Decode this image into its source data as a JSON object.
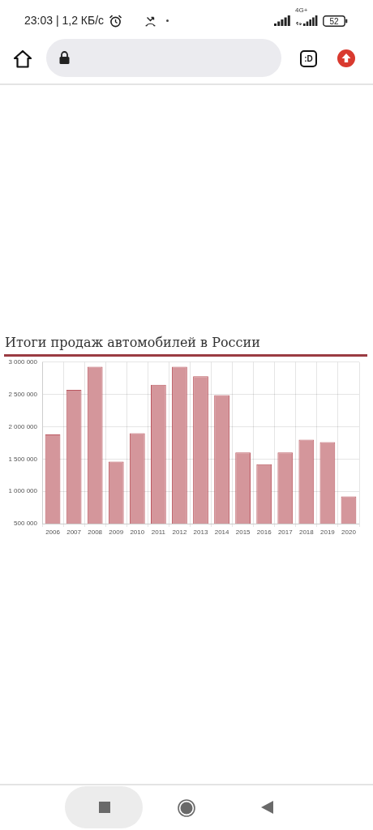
{
  "chart_data": {
    "type": "bar",
    "title": "Итоги продаж автомобилей в России",
    "categories": [
      "2006",
      "2007",
      "2008",
      "2009",
      "2010",
      "2011",
      "2012",
      "2013",
      "2014",
      "2015",
      "2016",
      "2017",
      "2018",
      "2019",
      "2020"
    ],
    "values": [
      1880000,
      2570000,
      2930000,
      1460000,
      1900000,
      2650000,
      2930000,
      2780000,
      2490000,
      1600000,
      1420000,
      1600000,
      1800000,
      1760000,
      920000
    ],
    "color": "#d4969b",
    "ylim": [
      500000,
      3000000
    ],
    "yticks": [
      {
        "value": 500000,
        "label": "500 000"
      },
      {
        "value": 1000000,
        "label": "1 000 000"
      },
      {
        "value": 1500000,
        "label": "1 500 000"
      },
      {
        "value": 2000000,
        "label": "2 000 000"
      },
      {
        "value": 2500000,
        "label": "2 500 000"
      },
      {
        "value": 3000000,
        "label": "3 000 000"
      }
    ],
    "grid": true,
    "annotations": [
      "23:03 | 1,2 КБ/с",
      "4G+",
      "52",
      ":D"
    ]
  }
}
